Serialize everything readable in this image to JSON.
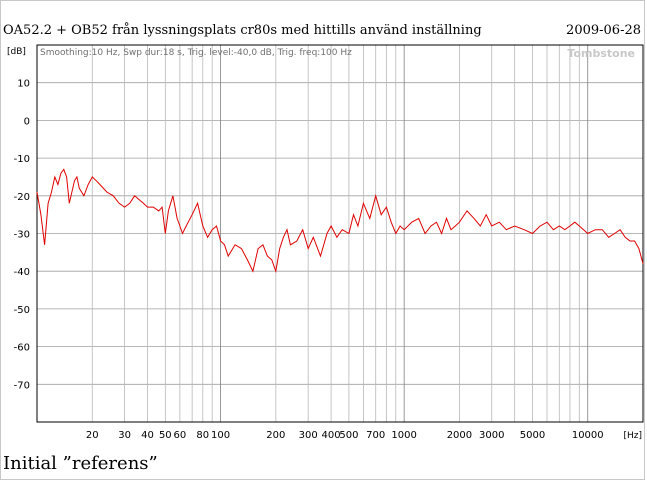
{
  "window": {
    "title": "OA52.2 + OB52 från lyssningsplats cr80s med hittills använd inställning",
    "date": "2009-06-28",
    "caption": "Initial ”referens”"
  },
  "colors": {
    "trace": "#e00000",
    "grid": "#a0a0a0",
    "axis": "#000000"
  },
  "chart_data": {
    "type": "line",
    "title": "OA52.2 + OB52 från lyssningsplats cr80s med hittills använd inställning",
    "info_text": "Smoothing:10 Hz, Swp dur:18 s, Trig. level:-40,0 dB, Trig. freq:100 Hz",
    "watermark": "Tombstone",
    "ylabel": "[dB]",
    "xlabel": "[Hz]",
    "xscale": "log",
    "xlim": [
      10,
      20000
    ],
    "ylim": [
      -80,
      20
    ],
    "yticks": [
      10,
      0,
      -10,
      -20,
      -30,
      -40,
      -50,
      -60,
      -70
    ],
    "ytick_labels": [
      "10",
      "0",
      "-10",
      "-20",
      "-30",
      "-40",
      "-50",
      "-60",
      "-70"
    ],
    "xticks": [
      20,
      30,
      40,
      50,
      60,
      80,
      100,
      200,
      300,
      400,
      500,
      700,
      1000,
      2000,
      3000,
      5000,
      10000
    ],
    "xtick_labels": [
      "20",
      "30",
      "40",
      "50",
      "60",
      "80",
      "100",
      "200",
      "300",
      "400",
      "500",
      "700",
      "1000",
      "2000",
      "3000",
      "5000",
      "10000"
    ],
    "grid": true,
    "series": [
      {
        "x": [
          10,
          10.5,
          11,
          11.5,
          12,
          12.5,
          13,
          13.5,
          14,
          14.5,
          15,
          16,
          16.5,
          17,
          18,
          19,
          20,
          21,
          22,
          24,
          26,
          28,
          30,
          32,
          34,
          36,
          38,
          40,
          43,
          46,
          48,
          50,
          52,
          55,
          58,
          60,
          62,
          65,
          70,
          75,
          80,
          85,
          90,
          95,
          100,
          105,
          110,
          120,
          130,
          140,
          150,
          160,
          170,
          180,
          190,
          200,
          210,
          220,
          230,
          240,
          260,
          280,
          300,
          320,
          350,
          380,
          400,
          430,
          460,
          500,
          530,
          560,
          600,
          650,
          700,
          750,
          800,
          850,
          900,
          950,
          1000,
          1100,
          1200,
          1300,
          1400,
          1500,
          1600,
          1700,
          1800,
          1900,
          2000,
          2200,
          2400,
          2600,
          2800,
          3000,
          3300,
          3600,
          4000,
          4500,
          5000,
          5500,
          6000,
          6500,
          7000,
          7500,
          8000,
          8500,
          9000,
          9500,
          10000,
          11000,
          12000,
          13000,
          14000,
          15000,
          16000,
          17000,
          18000,
          19000,
          20000
        ],
        "y": [
          -19,
          -25,
          -33,
          -22,
          -19,
          -15,
          -17,
          -14,
          -13,
          -15,
          -22,
          -16,
          -15,
          -18,
          -20,
          -17,
          -15,
          -16,
          -17,
          -19,
          -20,
          -22,
          -23,
          -22,
          -20,
          -21,
          -22,
          -23,
          -23,
          -24,
          -23,
          -30,
          -24,
          -20,
          -26,
          -28,
          -30,
          -28,
          -25,
          -22,
          -28,
          -31,
          -29,
          -28,
          -32,
          -33,
          -36,
          -33,
          -34,
          -37,
          -40,
          -34,
          -33,
          -36,
          -37,
          -40,
          -34,
          -31,
          -29,
          -33,
          -32,
          -29,
          -34,
          -31,
          -36,
          -30,
          -28,
          -31,
          -29,
          -30,
          -25,
          -28,
          -22,
          -26,
          -20,
          -25,
          -23,
          -27,
          -30,
          -28,
          -29,
          -27,
          -26,
          -30,
          -28,
          -27,
          -30,
          -26,
          -29,
          -28,
          -27,
          -24,
          -26,
          -28,
          -25,
          -28,
          -27,
          -29,
          -28,
          -29,
          -30,
          -28,
          -27,
          -29,
          -28,
          -29,
          -28,
          -27,
          -28,
          -29,
          -30,
          -29,
          -29,
          -31,
          -30,
          -29,
          -31,
          -32,
          -32,
          -34,
          -38
        ]
      }
    ]
  }
}
